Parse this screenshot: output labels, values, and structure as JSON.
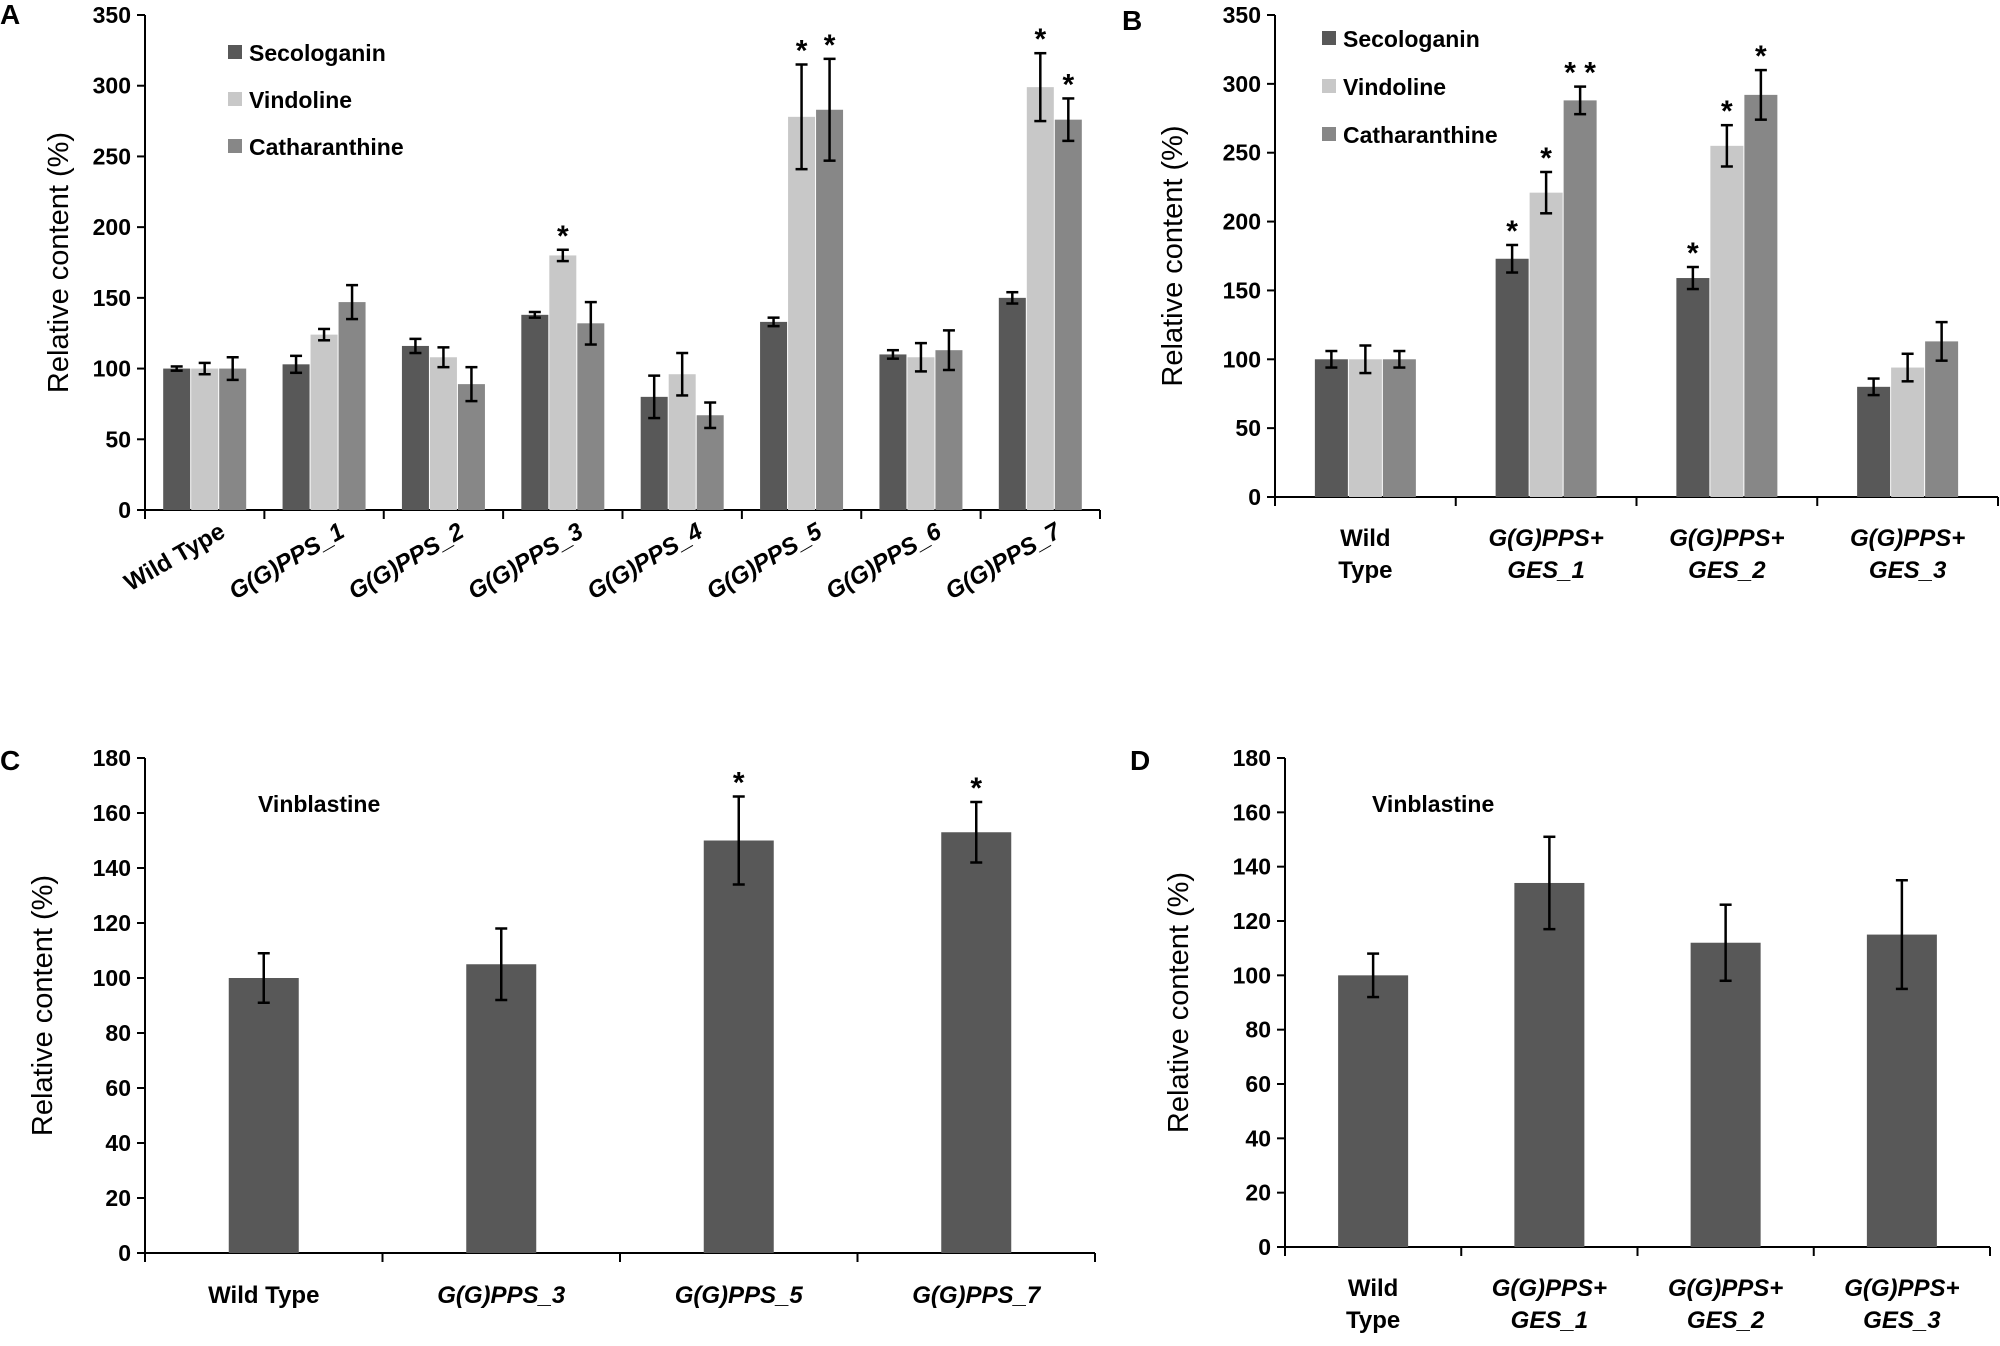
{
  "colors": {
    "secologanin": "#585858",
    "vindoline": "#c8c8c8",
    "catharanthine": "#878787",
    "vinblastine": "#585858",
    "error_bar": "#000000"
  },
  "chart_data": [
    {
      "panel": "A",
      "type": "bar",
      "title": "",
      "xlabel": "",
      "ylabel": "Relative content (%)",
      "ylim": [
        0,
        350
      ],
      "yticks": [
        "0",
        "50",
        "100",
        "150",
        "200",
        "250",
        "300",
        "350"
      ],
      "categories": [
        "Wild Type",
        "G(G)PPS_1",
        "G(G)PPS_2",
        "G(G)PPS_3",
        "G(G)PPS_4",
        "G(G)PPS_5",
        "G(G)PPS_6",
        "G(G)PPS_7"
      ],
      "legend_position": "top-left",
      "series": [
        {
          "name": "Secologanin",
          "color_key": "secologanin",
          "values": [
            100,
            103,
            116,
            138,
            80,
            133,
            110,
            150
          ],
          "errors": [
            1.5,
            6,
            5,
            2,
            15,
            3,
            3,
            4
          ],
          "stars": [
            "",
            "",
            "",
            "",
            "",
            "",
            "",
            ""
          ]
        },
        {
          "name": "Vindoline",
          "color_key": "vindoline",
          "values": [
            100,
            124,
            108,
            180,
            96,
            278,
            108,
            299
          ],
          "errors": [
            4,
            4,
            7,
            4,
            15,
            37,
            10,
            24
          ],
          "stars": [
            "",
            "",
            "",
            "*",
            "",
            "*",
            "",
            "*"
          ]
        },
        {
          "name": "Catharanthine",
          "color_key": "catharanthine",
          "values": [
            100,
            147,
            89,
            132,
            67,
            283,
            113,
            276
          ],
          "errors": [
            8,
            12,
            12,
            15,
            9,
            36,
            14,
            15
          ],
          "stars": [
            "",
            "",
            "",
            "",
            "",
            "*",
            "",
            "*"
          ]
        }
      ]
    },
    {
      "panel": "B",
      "type": "bar",
      "title": "",
      "xlabel": "",
      "ylabel": "Relative content (%)",
      "ylim": [
        0,
        350
      ],
      "yticks": [
        "0",
        "50",
        "100",
        "150",
        "200",
        "250",
        "300",
        "350"
      ],
      "categories": [
        [
          "Wild",
          "Type"
        ],
        [
          "G(G)PPS+",
          "GES_1"
        ],
        [
          "G(G)PPS+",
          "GES_2"
        ],
        [
          "G(G)PPS+",
          "GES_3"
        ]
      ],
      "legend_position": "top-left",
      "series": [
        {
          "name": "Secologanin",
          "color_key": "secologanin",
          "values": [
            100,
            173,
            159,
            80
          ],
          "errors": [
            6,
            10,
            8,
            6
          ],
          "stars": [
            "",
            "*",
            "*",
            ""
          ]
        },
        {
          "name": "Vindoline",
          "color_key": "vindoline",
          "values": [
            100,
            221,
            255,
            94
          ],
          "errors": [
            10,
            15,
            15,
            10
          ],
          "stars": [
            "",
            "*",
            "*",
            ""
          ]
        },
        {
          "name": "Catharanthine",
          "color_key": "catharanthine",
          "values": [
            100,
            288,
            292,
            113
          ],
          "errors": [
            6,
            10,
            18,
            14
          ],
          "stars": [
            "",
            "**",
            "*",
            ""
          ]
        }
      ]
    },
    {
      "panel": "C",
      "type": "bar",
      "title": "Vinblastine",
      "xlabel": "",
      "ylabel": "Relative content (%)",
      "ylim": [
        0,
        180
      ],
      "yticks": [
        "0",
        "20",
        "40",
        "60",
        "80",
        "100",
        "120",
        "140",
        "160",
        "180"
      ],
      "categories": [
        "Wild Type",
        "G(G)PPS_3",
        "G(G)PPS_5",
        "G(G)PPS_7"
      ],
      "series": [
        {
          "name": "Vinblastine",
          "color_key": "vinblastine",
          "values": [
            100,
            105,
            150,
            153
          ],
          "errors": [
            9,
            13,
            16,
            11
          ],
          "stars": [
            "",
            "",
            "*",
            "*"
          ]
        }
      ]
    },
    {
      "panel": "D",
      "type": "bar",
      "title": "Vinblastine",
      "xlabel": "",
      "ylabel": "Relative content (%)",
      "ylim": [
        0,
        180
      ],
      "yticks": [
        "0",
        "20",
        "40",
        "60",
        "80",
        "100",
        "120",
        "140",
        "160",
        "180"
      ],
      "categories": [
        [
          "Wild",
          "Type"
        ],
        [
          "G(G)PPS+",
          "GES_1"
        ],
        [
          "G(G)PPS+",
          "GES_2"
        ],
        [
          "G(G)PPS+",
          "GES_3"
        ]
      ],
      "series": [
        {
          "name": "Vinblastine",
          "color_key": "vinblastine",
          "values": [
            100,
            134,
            112,
            115
          ],
          "errors": [
            8,
            17,
            14,
            20
          ],
          "stars": [
            "",
            "",
            "",
            ""
          ]
        }
      ]
    }
  ]
}
